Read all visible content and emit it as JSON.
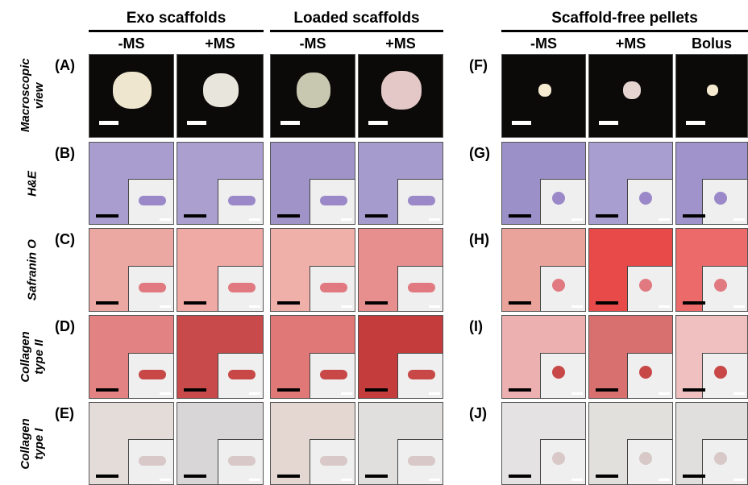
{
  "groups": [
    {
      "title": "Exo scaffolds",
      "columns": [
        "-MS",
        "+MS"
      ]
    },
    {
      "title": "Loaded scaffolds",
      "columns": [
        "-MS",
        "+MS"
      ]
    },
    {
      "title": "Scaffold-free pellets",
      "columns": [
        "-MS",
        "+MS",
        "Bolus"
      ]
    }
  ],
  "rows": [
    {
      "label": "Macroscopic view",
      "letters": [
        "(A)",
        "(F)"
      ]
    },
    {
      "label": "H&E",
      "letters": [
        "(B)",
        "(G)"
      ]
    },
    {
      "label": "Safranin O",
      "letters": [
        "(C)",
        "(H)"
      ]
    },
    {
      "label": "Collagen type II",
      "letters": [
        "(D)",
        "(I)"
      ]
    },
    {
      "label": "Collagen type I",
      "letters": [
        "(E)",
        "(J)"
      ]
    }
  ]
}
